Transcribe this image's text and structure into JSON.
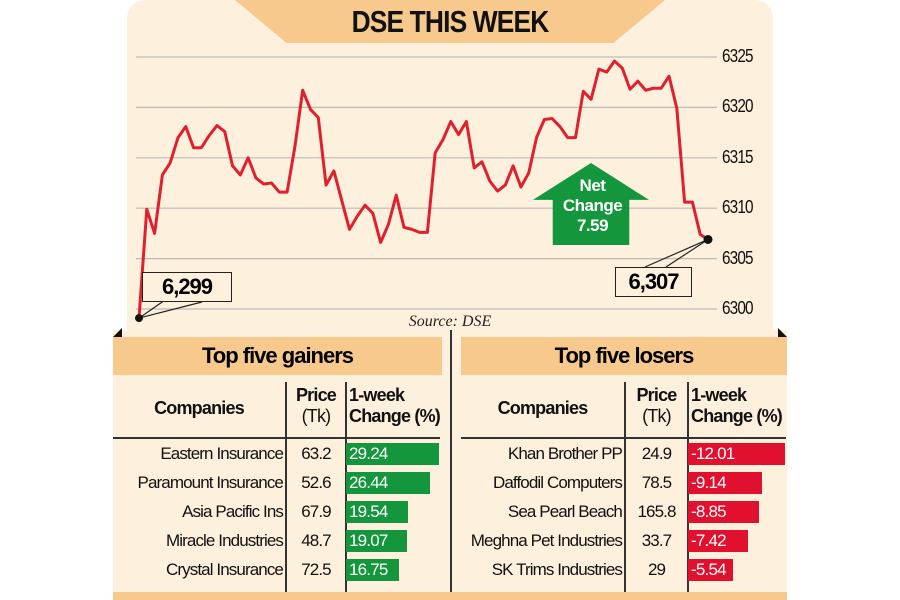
{
  "title": "DSE THIS WEEK",
  "source": "Source: DSE",
  "colors": {
    "line": "#e0202e",
    "gain": "#14963c",
    "loss": "#e0102e",
    "panel": "#fdf0dc",
    "band": "#f8c98c"
  },
  "chart_data": {
    "type": "line",
    "title": "DSE THIS WEEK",
    "ylim": [
      6300,
      6325
    ],
    "yticks": [
      "6325",
      "6320",
      "6315",
      "6310",
      "6305",
      "6300"
    ],
    "grid": true,
    "values": [
      6299.1,
      6309.9,
      6307.5,
      6313.3,
      6314.5,
      6317,
      6318.1,
      6316,
      6316,
      6317.2,
      6318.2,
      6317.6,
      6314.2,
      6313.3,
      6315,
      6313,
      6312.4,
      6312.5,
      6311.6,
      6311.6,
      6316.1,
      6321.7,
      6319.8,
      6319,
      6312.3,
      6313.7,
      6310.8,
      6307.9,
      6309.2,
      6310.3,
      6309.5,
      6306.6,
      6308.4,
      6311.3,
      6308.1,
      6307.9,
      6307.6,
      6307.6,
      6315.5,
      6316.8,
      6318.6,
      6317.3,
      6318.6,
      6314,
      6314.6,
      6312.7,
      6311.7,
      6312.3,
      6314.2,
      6312.1,
      6313.5,
      6317,
      6318.8,
      6318.9,
      6318.1,
      6317,
      6317,
      6321.6,
      6320.8,
      6323.8,
      6323.5,
      6324.6,
      6323.9,
      6321.8,
      6322.6,
      6321.7,
      6321.9,
      6321.9,
      6323.1,
      6319.9,
      6310.6,
      6310.6,
      6307.4,
      6306.9
    ],
    "annotations": {
      "start_label": "6,299",
      "end_label": "6,307",
      "net_change_title": "Net Change",
      "net_change_value": "7.59"
    }
  },
  "gainers": {
    "heading": "Top five gainers",
    "columns": {
      "company": "Companies",
      "price": "Price",
      "price_unit": "(Tk)",
      "change1": "1-week",
      "change2": "Change (%)"
    },
    "rows": [
      {
        "company": "Eastern Insurance",
        "price": "63.2",
        "change": "29.24",
        "value": 29.24
      },
      {
        "company": "Paramount Insurance",
        "price": "52.6",
        "change": "26.44",
        "value": 26.44
      },
      {
        "company": "Asia Pacific Ins",
        "price": "67.9",
        "change": "19.54",
        "value": 19.54
      },
      {
        "company": "Miracle Industries",
        "price": "48.7",
        "change": "19.07",
        "value": 19.07
      },
      {
        "company": "Crystal Insurance",
        "price": "72.5",
        "change": "16.75",
        "value": 16.75
      }
    ]
  },
  "losers": {
    "heading": "Top five losers",
    "columns": {
      "company": "Companies",
      "price": "Price",
      "price_unit": "(Tk)",
      "change1": "1-week",
      "change2": "Change (%)"
    },
    "rows": [
      {
        "company": "Khan Brother PP",
        "price": "24.9",
        "change": "-12.01",
        "value": -12.01
      },
      {
        "company": "Daffodil Computers",
        "price": "78.5",
        "change": "-9.14",
        "value": -9.14
      },
      {
        "company": "Sea Pearl Beach",
        "price": "165.8",
        "change": "-8.85",
        "value": -8.85
      },
      {
        "company": "Meghna Pet Industries",
        "price": "33.7",
        "change": "-7.42",
        "value": -7.42
      },
      {
        "company": "SK Trims Industries",
        "price": "29",
        "change": "-5.54",
        "value": -5.54
      }
    ]
  }
}
